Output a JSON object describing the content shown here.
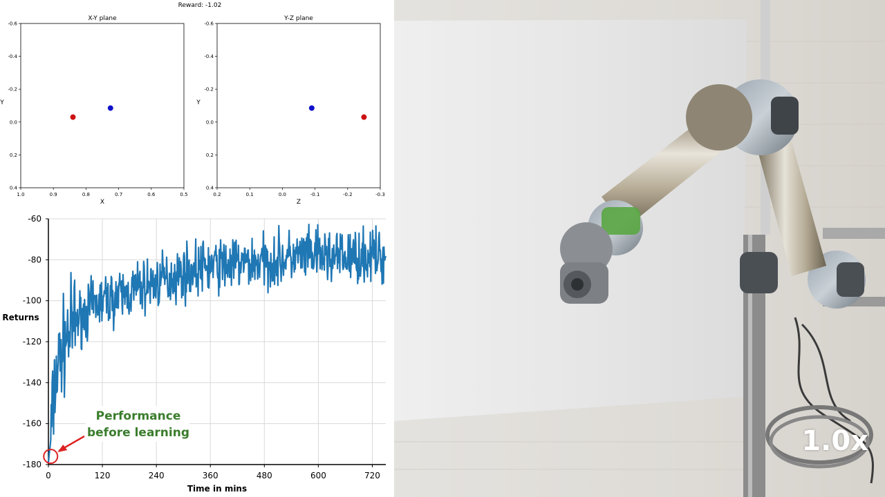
{
  "header": {
    "reward_text": "Reward: -1.02"
  },
  "chart_data": [
    {
      "type": "scatter",
      "title": "X-Y plane",
      "xlabel": "X",
      "ylabel": "Y",
      "xlim": [
        1.0,
        0.5
      ],
      "ylim": [
        -0.6,
        0.4
      ],
      "xticks": [
        "1.0",
        "0.9",
        "0.8",
        "0.7",
        "0.6",
        "0.5"
      ],
      "yticks": [
        "-0.6",
        "-0.4",
        "-0.2",
        "0.0",
        "0.2",
        "0.4"
      ],
      "points": [
        {
          "name": "red",
          "x": 0.84,
          "y": -0.03,
          "color": "#cc1111"
        },
        {
          "name": "blue",
          "x": 0.725,
          "y": -0.085,
          "color": "#1111cc"
        }
      ]
    },
    {
      "type": "scatter",
      "title": "Y-Z plane",
      "xlabel": "Z",
      "ylabel": "Y",
      "xlim": [
        0.2,
        -0.3
      ],
      "ylim": [
        -0.6,
        0.4
      ],
      "xticks": [
        "0.2",
        "0.1",
        "0.0",
        "-0.1",
        "-0.2",
        "-0.3"
      ],
      "yticks": [
        "-0.6",
        "-0.4",
        "-0.2",
        "0.0",
        "0.2",
        "0.4"
      ],
      "points": [
        {
          "name": "blue",
          "x": -0.09,
          "y": -0.085,
          "color": "#1111cc"
        },
        {
          "name": "red",
          "x": -0.25,
          "y": -0.03,
          "color": "#cc1111"
        }
      ]
    },
    {
      "type": "line",
      "title": "",
      "xlabel": "Time in mins",
      "ylabel": "Returns",
      "xlim": [
        0,
        750
      ],
      "ylim": [
        -180,
        -60
      ],
      "xticks": [
        "0",
        "120",
        "240",
        "360",
        "480",
        "600",
        "720"
      ],
      "yticks": [
        "-60",
        "-80",
        "-100",
        "-120",
        "-140",
        "-160",
        "-180"
      ],
      "grid": true,
      "color": "#1f77b4",
      "seed": 7,
      "x_end": 750,
      "n_points": 720,
      "trend": [
        [
          0,
          -178
        ],
        [
          3,
          -174
        ],
        [
          8,
          -158
        ],
        [
          15,
          -140
        ],
        [
          25,
          -128
        ],
        [
          40,
          -118
        ],
        [
          60,
          -110
        ],
        [
          90,
          -104
        ],
        [
          120,
          -100
        ],
        [
          160,
          -98
        ],
        [
          200,
          -94
        ],
        [
          240,
          -91
        ],
        [
          280,
          -88
        ],
        [
          320,
          -85
        ],
        [
          360,
          -83
        ],
        [
          420,
          -82
        ],
        [
          480,
          -81
        ],
        [
          540,
          -79
        ],
        [
          600,
          -78
        ],
        [
          660,
          -79
        ],
        [
          720,
          -78
        ],
        [
          750,
          -79
        ]
      ],
      "annotation": {
        "text_line1": "Performance",
        "text_line2": "before learning",
        "color": "#3a7d2c",
        "target": [
          5,
          -176
        ]
      }
    }
  ],
  "video": {
    "speed_label": "1.0x"
  }
}
